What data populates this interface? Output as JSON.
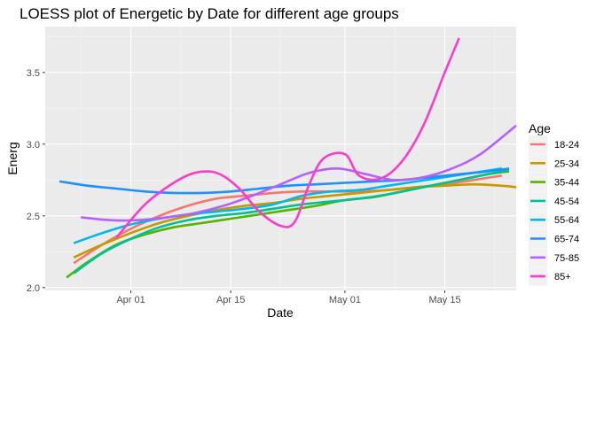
{
  "chart_data": {
    "type": "line",
    "title": "LOESS plot of Energetic by Date for different age groups",
    "xlabel": "Date",
    "ylabel": "Energ",
    "x_domain": [
      "2020-03-20",
      "2020-05-25"
    ],
    "ylim": [
      1.98,
      3.82
    ],
    "x_ticks": [
      {
        "date": "2020-04-01",
        "label": "Apr 01"
      },
      {
        "date": "2020-04-15",
        "label": "Apr 15"
      },
      {
        "date": "2020-05-01",
        "label": "May 01"
      },
      {
        "date": "2020-05-15",
        "label": "May 15"
      }
    ],
    "x_minor_ticks": [
      "2020-03-25",
      "2020-04-08",
      "2020-04-22",
      "2020-05-08",
      "2020-05-22"
    ],
    "y_ticks": [
      2.0,
      2.5,
      3.0,
      3.5
    ],
    "y_minor_ticks": [
      2.25,
      2.75,
      3.25,
      3.75
    ],
    "grid": true,
    "legend": {
      "title": "Age",
      "placement": "right"
    },
    "series": [
      {
        "name": "18-24",
        "color": "#F8766D",
        "points": [
          [
            "2020-03-24",
            2.17
          ],
          [
            "2020-03-28",
            2.3
          ],
          [
            "2020-04-01",
            2.41
          ],
          [
            "2020-04-05",
            2.5
          ],
          [
            "2020-04-09",
            2.57
          ],
          [
            "2020-04-13",
            2.62
          ],
          [
            "2020-04-17",
            2.64
          ],
          [
            "2020-04-21",
            2.66
          ],
          [
            "2020-04-25",
            2.67
          ],
          [
            "2020-04-29",
            2.67
          ],
          [
            "2020-05-03",
            2.67
          ],
          [
            "2020-05-07",
            2.68
          ],
          [
            "2020-05-11",
            2.7
          ],
          [
            "2020-05-15",
            2.72
          ],
          [
            "2020-05-19",
            2.75
          ],
          [
            "2020-05-23",
            2.78
          ]
        ]
      },
      {
        "name": "25-34",
        "color": "#C49A00",
        "points": [
          [
            "2020-03-24",
            2.21
          ],
          [
            "2020-03-28",
            2.3
          ],
          [
            "2020-04-01",
            2.38
          ],
          [
            "2020-04-05",
            2.45
          ],
          [
            "2020-04-09",
            2.5
          ],
          [
            "2020-04-13",
            2.54
          ],
          [
            "2020-04-17",
            2.57
          ],
          [
            "2020-04-21",
            2.59
          ],
          [
            "2020-04-25",
            2.62
          ],
          [
            "2020-04-29",
            2.64
          ],
          [
            "2020-05-03",
            2.66
          ],
          [
            "2020-05-07",
            2.68
          ],
          [
            "2020-05-11",
            2.7
          ],
          [
            "2020-05-15",
            2.71
          ],
          [
            "2020-05-19",
            2.72
          ],
          [
            "2020-05-23",
            2.71
          ],
          [
            "2020-05-25",
            2.7
          ]
        ]
      },
      {
        "name": "35-44",
        "color": "#53B400",
        "points": [
          [
            "2020-03-23",
            2.07
          ],
          [
            "2020-03-26",
            2.18
          ],
          [
            "2020-03-30",
            2.3
          ],
          [
            "2020-04-03",
            2.37
          ],
          [
            "2020-04-07",
            2.42
          ],
          [
            "2020-04-11",
            2.45
          ],
          [
            "2020-04-15",
            2.48
          ],
          [
            "2020-04-19",
            2.51
          ],
          [
            "2020-04-23",
            2.54
          ],
          [
            "2020-04-27",
            2.57
          ],
          [
            "2020-05-01",
            2.61
          ],
          [
            "2020-05-05",
            2.63
          ],
          [
            "2020-05-09",
            2.67
          ],
          [
            "2020-05-13",
            2.71
          ],
          [
            "2020-05-17",
            2.75
          ],
          [
            "2020-05-21",
            2.79
          ],
          [
            "2020-05-24",
            2.81
          ]
        ]
      },
      {
        "name": "45-54",
        "color": "#00C094",
        "points": [
          [
            "2020-03-24",
            2.1
          ],
          [
            "2020-03-28",
            2.24
          ],
          [
            "2020-04-01",
            2.34
          ],
          [
            "2020-04-05",
            2.42
          ],
          [
            "2020-04-09",
            2.47
          ],
          [
            "2020-04-13",
            2.5
          ],
          [
            "2020-04-17",
            2.52
          ],
          [
            "2020-04-21",
            2.55
          ],
          [
            "2020-04-25",
            2.58
          ],
          [
            "2020-04-29",
            2.6
          ],
          [
            "2020-05-03",
            2.62
          ],
          [
            "2020-05-07",
            2.65
          ],
          [
            "2020-05-11",
            2.69
          ],
          [
            "2020-05-15",
            2.73
          ],
          [
            "2020-05-19",
            2.77
          ],
          [
            "2020-05-24",
            2.82
          ]
        ]
      },
      {
        "name": "55-64",
        "color": "#00B6EB",
        "points": [
          [
            "2020-03-24",
            2.31
          ],
          [
            "2020-03-28",
            2.38
          ],
          [
            "2020-04-01",
            2.44
          ],
          [
            "2020-04-05",
            2.48
          ],
          [
            "2020-04-09",
            2.51
          ],
          [
            "2020-04-13",
            2.53
          ],
          [
            "2020-04-17",
            2.55
          ],
          [
            "2020-04-21",
            2.58
          ],
          [
            "2020-04-25",
            2.64
          ],
          [
            "2020-04-29",
            2.67
          ],
          [
            "2020-05-03",
            2.68
          ],
          [
            "2020-05-07",
            2.71
          ],
          [
            "2020-05-11",
            2.74
          ],
          [
            "2020-05-15",
            2.77
          ],
          [
            "2020-05-19",
            2.8
          ],
          [
            "2020-05-23",
            2.83
          ]
        ]
      },
      {
        "name": "65-74",
        "color": "#A58AFF",
        "line_color": "#1E90FF",
        "points": [
          [
            "2020-03-22",
            2.74
          ],
          [
            "2020-03-26",
            2.71
          ],
          [
            "2020-03-30",
            2.69
          ],
          [
            "2020-04-03",
            2.67
          ],
          [
            "2020-04-07",
            2.66
          ],
          [
            "2020-04-11",
            2.66
          ],
          [
            "2020-04-15",
            2.67
          ],
          [
            "2020-04-19",
            2.69
          ],
          [
            "2020-04-23",
            2.71
          ],
          [
            "2020-04-27",
            2.72
          ],
          [
            "2020-05-01",
            2.73
          ],
          [
            "2020-05-05",
            2.74
          ],
          [
            "2020-05-09",
            2.75
          ],
          [
            "2020-05-13",
            2.77
          ],
          [
            "2020-05-17",
            2.79
          ],
          [
            "2020-05-21",
            2.81
          ],
          [
            "2020-05-24",
            2.83
          ]
        ]
      },
      {
        "name": "75-85",
        "color": "#B560FF",
        "points": [
          [
            "2020-03-25",
            2.49
          ],
          [
            "2020-03-29",
            2.47
          ],
          [
            "2020-04-02",
            2.47
          ],
          [
            "2020-04-06",
            2.49
          ],
          [
            "2020-04-10",
            2.52
          ],
          [
            "2020-04-14",
            2.57
          ],
          [
            "2020-04-18",
            2.64
          ],
          [
            "2020-04-22",
            2.72
          ],
          [
            "2020-04-26",
            2.8
          ],
          [
            "2020-04-30",
            2.83
          ],
          [
            "2020-05-04",
            2.79
          ],
          [
            "2020-05-08",
            2.75
          ],
          [
            "2020-05-12",
            2.77
          ],
          [
            "2020-05-16",
            2.83
          ],
          [
            "2020-05-20",
            2.93
          ],
          [
            "2020-05-25",
            3.13
          ]
        ]
      },
      {
        "name": "85+",
        "color": "#FB3CC8",
        "points": [
          [
            "2020-03-30",
            2.35
          ],
          [
            "2020-04-03",
            2.58
          ],
          [
            "2020-04-07",
            2.73
          ],
          [
            "2020-04-10",
            2.8
          ],
          [
            "2020-04-13",
            2.8
          ],
          [
            "2020-04-16",
            2.7
          ],
          [
            "2020-04-19",
            2.53
          ],
          [
            "2020-04-22",
            2.43
          ],
          [
            "2020-04-24",
            2.46
          ],
          [
            "2020-04-26",
            2.72
          ],
          [
            "2020-04-28",
            2.9
          ],
          [
            "2020-05-01",
            2.93
          ],
          [
            "2020-05-03",
            2.78
          ],
          [
            "2020-05-06",
            2.76
          ],
          [
            "2020-05-09",
            2.88
          ],
          [
            "2020-05-12",
            3.13
          ],
          [
            "2020-05-15",
            3.5
          ],
          [
            "2020-05-17",
            3.74
          ]
        ]
      }
    ]
  }
}
